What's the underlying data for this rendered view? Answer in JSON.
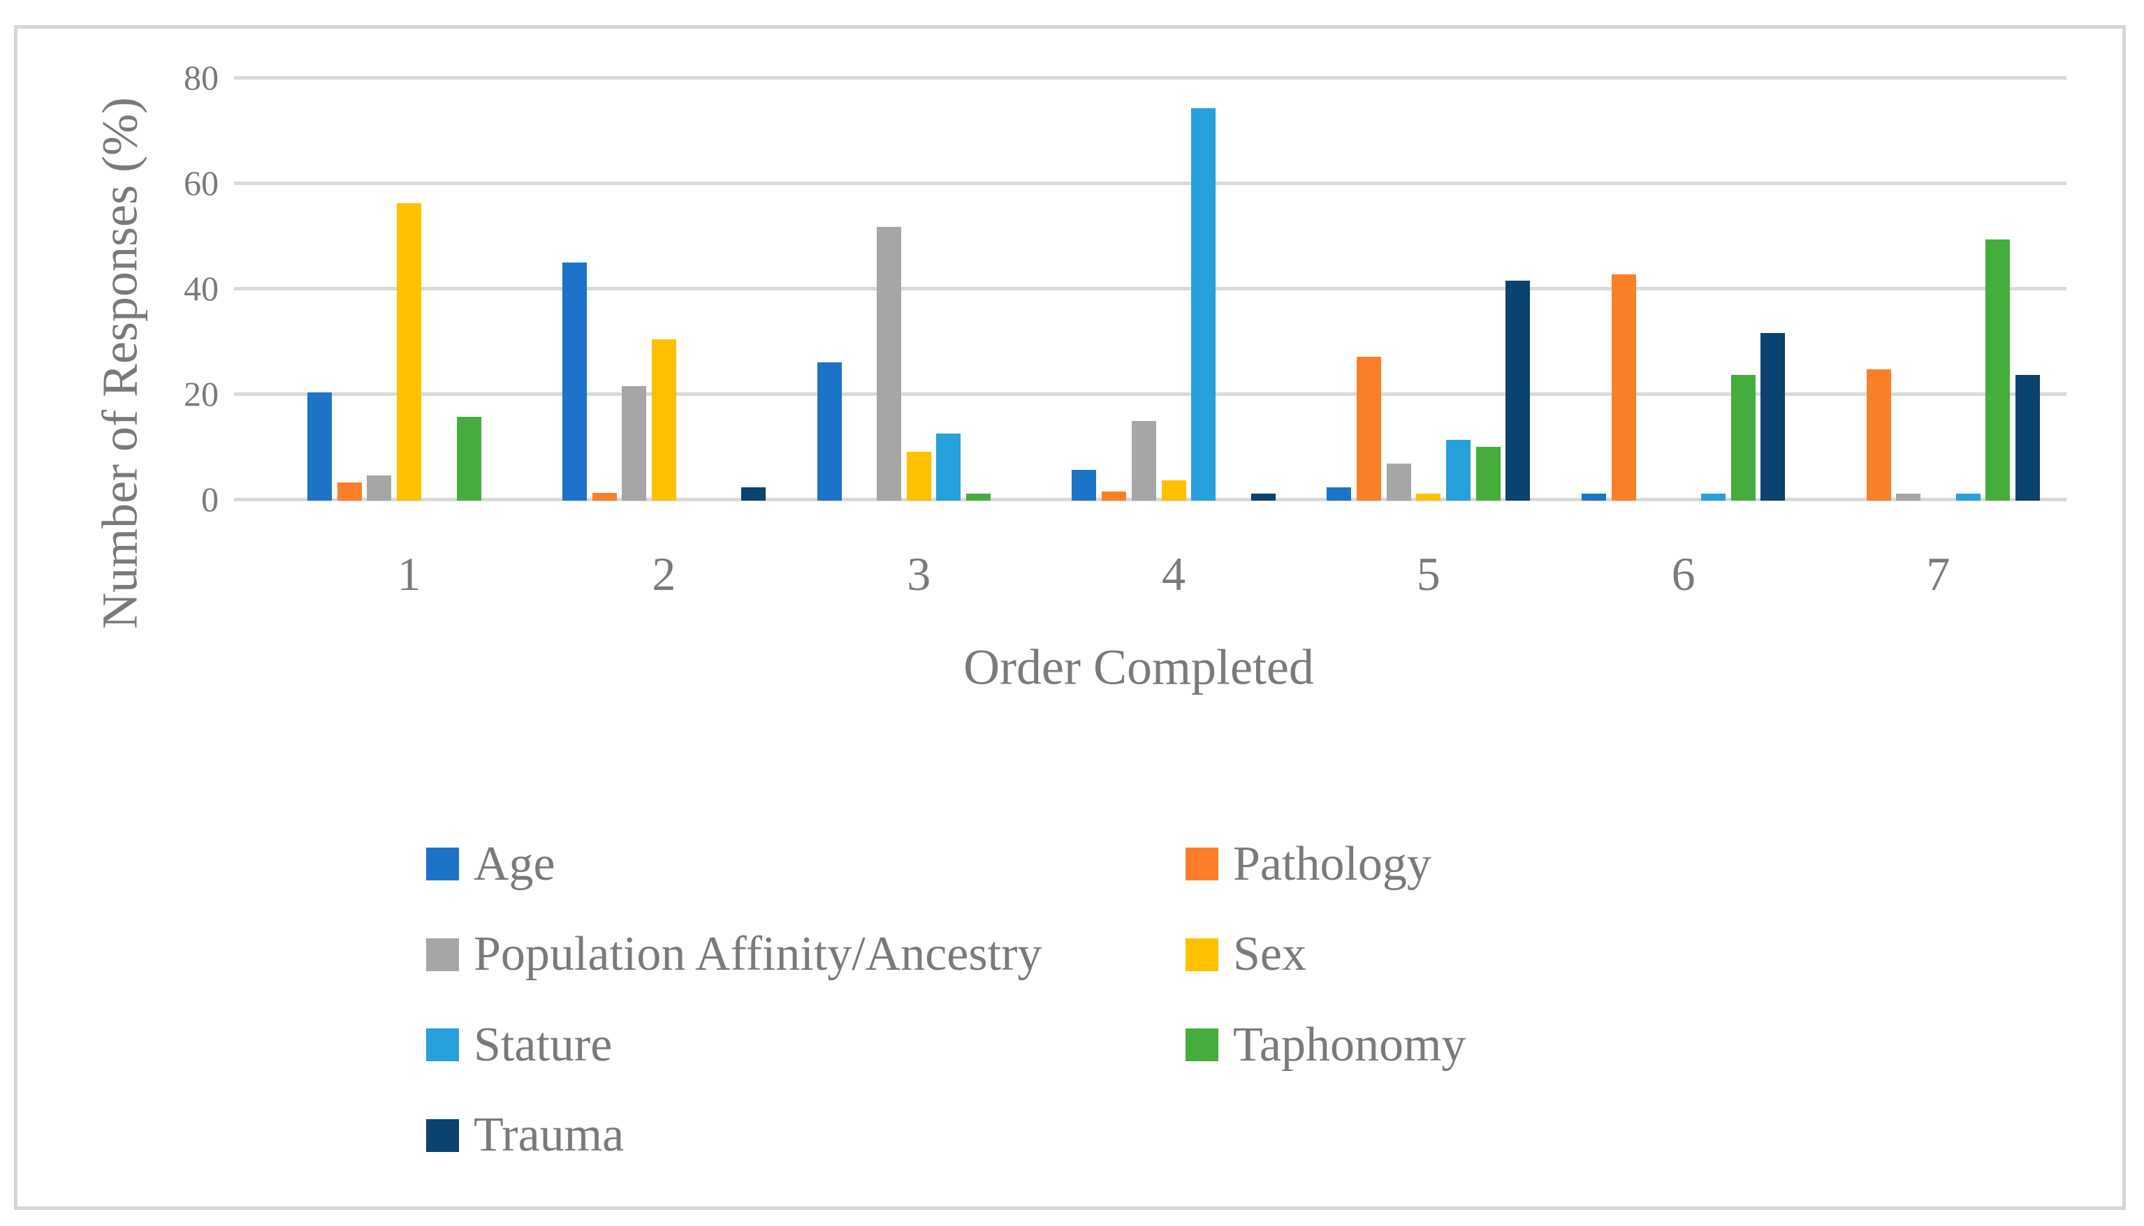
{
  "figure": {
    "background_color": "#ffffff",
    "border_color": "#d6d6d6",
    "text_color": "#7a7a7a",
    "gridline_color": "#d9d9d9"
  },
  "chart_data": {
    "type": "bar",
    "title": "",
    "xlabel": "Order Completed",
    "ylabel": "Number of Responses (%)",
    "categories": [
      "1",
      "2",
      "3",
      "4",
      "5",
      "6",
      "7"
    ],
    "y_ticks": [
      0,
      20,
      40,
      60,
      80
    ],
    "ylim": [
      0,
      80
    ],
    "grid": true,
    "legend_position": "bottom",
    "legend_columns": 2,
    "series": [
      {
        "name": "Age",
        "color": "#1c73c8",
        "values": [
          20.2,
          44.9,
          25.9,
          5.6,
          2.2,
          1.1,
          0
        ]
      },
      {
        "name": "Pathology",
        "color": "#fb7e28",
        "values": [
          3.2,
          1.2,
          0,
          1.4,
          27.0,
          42.7,
          24.7
        ]
      },
      {
        "name": "Population Affinity/Ancestry",
        "color": "#a6a6a6",
        "values": [
          4.5,
          21.4,
          51.7,
          14.8,
          6.7,
          0,
          1.1
        ]
      },
      {
        "name": "Sex",
        "color": "#ffc000",
        "values": [
          56.2,
          30.3,
          9.0,
          3.6,
          1.1,
          0,
          0
        ]
      },
      {
        "name": "Stature",
        "color": "#27a0db",
        "values": [
          0,
          0,
          12.4,
          74.2,
          11.2,
          1.1,
          1.1
        ]
      },
      {
        "name": "Taphonomy",
        "color": "#45ad3c",
        "values": [
          15.6,
          0,
          1.1,
          0,
          10.0,
          23.6,
          49.3
        ]
      },
      {
        "name": "Trauma",
        "color": "#0a4270",
        "values": [
          0,
          2.2,
          0,
          1.1,
          41.5,
          31.5,
          23.6
        ]
      }
    ]
  }
}
